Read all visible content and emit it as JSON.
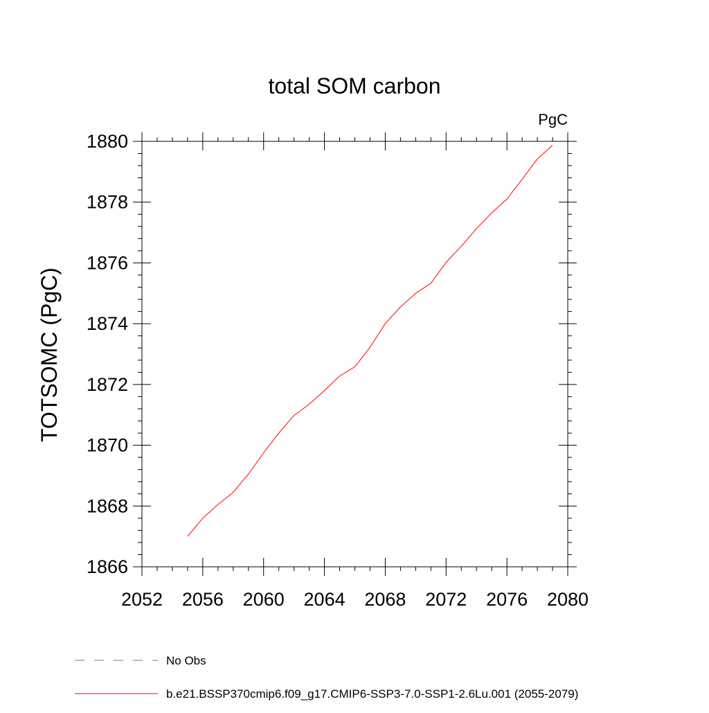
{
  "chart_data": {
    "type": "line",
    "title": "total SOM carbon",
    "units_label": "PgC",
    "xlabel": "",
    "ylabel": "TOTSOMC  (PgC)",
    "xlim": [
      2052,
      2080
    ],
    "ylim": [
      1866,
      1880
    ],
    "x_ticks": [
      2052,
      2056,
      2060,
      2064,
      2068,
      2072,
      2076,
      2080
    ],
    "y_ticks": [
      1866,
      1868,
      1870,
      1872,
      1874,
      1876,
      1878,
      1880
    ],
    "x_tick_labels": [
      "2052",
      "2056",
      "2060",
      "2064",
      "2068",
      "2072",
      "2076",
      "2080"
    ],
    "y_tick_labels": [
      "1866",
      "1868",
      "1870",
      "1872",
      "1874",
      "1876",
      "1878",
      "1880"
    ],
    "grid": false,
    "legend_position": "bottom-left",
    "series": [
      {
        "name": "b.e21.BSSP370cmip6.f09_g17.CMIP6-SSP3-7.0-SSP1-2.6Lu.001 (2055-2079)",
        "color": "#ff0000",
        "style": "solid",
        "x": [
          2055,
          2056,
          2057,
          2058,
          2059,
          2060,
          2061,
          2062,
          2063,
          2064,
          2065,
          2066,
          2067,
          2068,
          2069,
          2070,
          2071,
          2072,
          2073,
          2074,
          2075,
          2076,
          2077,
          2078,
          2079
        ],
        "y": [
          1867.0,
          1867.6,
          1868.05,
          1868.45,
          1869.05,
          1869.75,
          1870.4,
          1870.98,
          1871.35,
          1871.8,
          1872.28,
          1872.58,
          1873.23,
          1874.0,
          1874.55,
          1875.0,
          1875.33,
          1876.02,
          1876.55,
          1877.13,
          1877.65,
          1878.1,
          1878.75,
          1879.42,
          1879.87
        ]
      }
    ],
    "legend": [
      {
        "label": "No Obs",
        "color": "#7b6fb0",
        "style": "dashed"
      },
      {
        "label": "b.e21.BSSP370cmip6.f09_g17.CMIP6-SSP3-7.0-SSP1-2.6Lu.001 (2055-2079)",
        "color": "#ff0000",
        "style": "solid"
      }
    ]
  }
}
